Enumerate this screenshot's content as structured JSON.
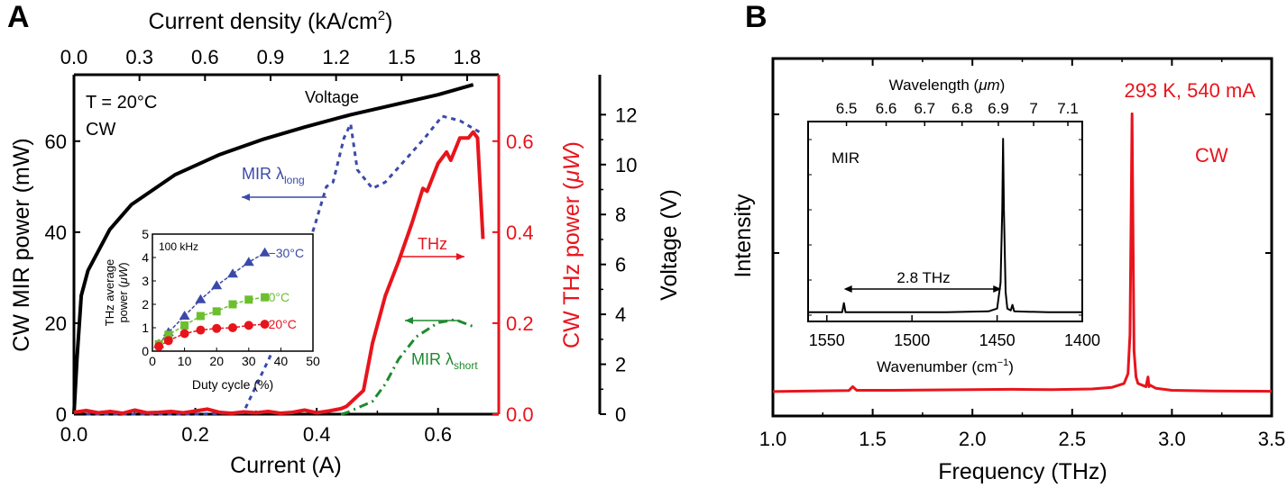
{
  "colors": {
    "black": "#000000",
    "red": "#e8141c",
    "blue": "#3b4aa8",
    "green": "#1e8a2e",
    "lightgreen": "#6cbf2e"
  },
  "chart_data": [
    {
      "panel_label": "A",
      "type": "line",
      "xlabel": "Current (A)",
      "x_top_label": {
        "text": "Current density (kA/cm",
        "sup": "2",
        "close": ")"
      },
      "ylabel_left": "CW MIR power (mW)",
      "ylabel_right": {
        "text": "CW THz power (",
        "mu": "μW",
        ")": ")"
      },
      "ylabel_right_parts": [
        "CW THz power (",
        "μW",
        ")"
      ],
      "ylabel_far_right": "Voltage (V)",
      "xlim": [
        0,
        0.7
      ],
      "ylim_left": [
        0,
        74.6
      ],
      "ylim_right": [
        0,
        0.746
      ],
      "ylim_voltage": [
        0,
        13.6
      ],
      "x_ticks": [
        "0.0",
        "0.2",
        "0.4",
        "0.6"
      ],
      "x_top_ticks": [
        "0.0",
        "0.3",
        "0.6",
        "0.9",
        "1.2",
        "1.5",
        "1.8"
      ],
      "y_left_ticks": [
        "0",
        "20",
        "40",
        "60"
      ],
      "y_right_ticks": [
        "0.0",
        "0.2",
        "0.4",
        "0.6"
      ],
      "y_voltage_ticks": [
        "0",
        "2",
        "4",
        "6",
        "8",
        "10",
        "12"
      ],
      "annotations": {
        "temp": "T = 20°C",
        "mode": "CW",
        "voltage": "Voltage",
        "thz": "THz",
        "mir_long": "MIR λ",
        "mir_long_sub": "long",
        "mir_short": "MIR λ",
        "mir_short_sub": "short"
      },
      "series": [
        {
          "name": "Voltage",
          "axis": "voltage",
          "color": "#000000",
          "style": "solid",
          "x": [
            0,
            0.005,
            0.012,
            0.023,
            0.059,
            0.095,
            0.167,
            0.24,
            0.31,
            0.38,
            0.456,
            0.528,
            0.6,
            0.658
          ],
          "y": [
            0,
            2.25,
            4.75,
            5.75,
            7.4,
            8.4,
            9.6,
            10.4,
            11.0,
            11.5,
            12.0,
            12.4,
            12.8,
            13.2
          ]
        },
        {
          "name": "MIR λlong",
          "axis": "left",
          "color": "#3b4aa8",
          "style": "dotted",
          "x": [
            0.02,
            0.1,
            0.2,
            0.279,
            0.326,
            0.369,
            0.398,
            0.416,
            0.427,
            0.445,
            0.456,
            0.467,
            0.492,
            0.513,
            0.55,
            0.578,
            0.607,
            0.636,
            0.672
          ],
          "y": [
            0,
            0,
            0,
            0.3,
            13.5,
            29.5,
            42,
            50,
            51,
            60.7,
            63.8,
            53.7,
            49.6,
            51,
            56.5,
            60.7,
            65.5,
            64.5,
            61.7
          ]
        },
        {
          "name": "THz",
          "axis": "right",
          "color": "#e8141c",
          "style": "solid",
          "x": [
            0,
            0.02,
            0.04,
            0.06,
            0.08,
            0.1,
            0.12,
            0.14,
            0.16,
            0.18,
            0.2,
            0.22,
            0.24,
            0.26,
            0.28,
            0.3,
            0.32,
            0.34,
            0.36,
            0.38,
            0.4,
            0.42,
            0.44,
            0.449,
            0.477,
            0.492,
            0.513,
            0.535,
            0.557,
            0.575,
            0.582,
            0.6,
            0.614,
            0.621,
            0.636,
            0.65,
            0.658,
            0.665,
            0.674
          ],
          "y": [
            0.004,
            0.008,
            0.003,
            0.006,
            0.002,
            0.009,
            0.003,
            0.004,
            0.006,
            0.003,
            0.007,
            0.011,
            0.004,
            0.002,
            0.005,
            0.003,
            0.006,
            0.002,
            0.004,
            0.009,
            0.003,
            0.007,
            0.012,
            0.017,
            0.052,
            0.156,
            0.26,
            0.336,
            0.42,
            0.496,
            0.49,
            0.551,
            0.576,
            0.558,
            0.607,
            0.607,
            0.62,
            0.607,
            0.385
          ]
        },
        {
          "name": "MIR λshort",
          "axis": "left",
          "color": "#1e8a2e",
          "style": "dashdot",
          "x": [
            0.44,
            0.449,
            0.492,
            0.513,
            0.535,
            0.564,
            0.6,
            0.628,
            0.661
          ],
          "y": [
            0,
            0.3,
            2.8,
            6.6,
            12.1,
            17,
            20.1,
            20.8,
            19.1
          ]
        }
      ],
      "inset": {
        "type": "line",
        "xlabel": "Duty cycle (%)",
        "ylabel_line1": "THz average",
        "ylabel_line2_parts": [
          "power (",
          "μW",
          ")"
        ],
        "note": "100 kHz",
        "xlim": [
          0,
          50
        ],
        "ylim": [
          0,
          5
        ],
        "x_ticks": [
          "0",
          "10",
          "20",
          "30",
          "40",
          "50"
        ],
        "y_ticks": [
          "0",
          "1",
          "2",
          "3",
          "4",
          "5"
        ],
        "series": [
          {
            "name": "−30°C",
            "color": "#3b4aa8",
            "marker": "triangle",
            "x": [
              2,
              5,
              10,
              15,
              20,
              25,
              30,
              35
            ],
            "y": [
              0.3,
              0.8,
              1.5,
              2.2,
              2.8,
              3.3,
              3.8,
              4.2
            ]
          },
          {
            "name": "0°C",
            "color": "#6cbf2e",
            "marker": "square",
            "x": [
              2,
              5,
              10,
              15,
              20,
              25,
              30,
              35
            ],
            "y": [
              0.3,
              0.7,
              1.1,
              1.5,
              1.7,
              2.0,
              2.2,
              2.3
            ]
          },
          {
            "name": "20°C",
            "color": "#e8141c",
            "marker": "circle",
            "x": [
              2,
              5,
              10,
              15,
              20,
              25,
              30,
              35
            ],
            "y": [
              0.2,
              0.45,
              0.75,
              0.9,
              0.97,
              1.0,
              1.1,
              1.15
            ]
          }
        ]
      }
    },
    {
      "panel_label": "B",
      "type": "line",
      "xlabel": "Frequency (THz)",
      "ylabel": "Intensity",
      "xlim": [
        1.0,
        3.5
      ],
      "ylim": [
        0,
        1.1
      ],
      "x_ticks": [
        "1.0",
        "1.5",
        "2.0",
        "2.5",
        "3.0",
        "3.5"
      ],
      "annotations": {
        "condition": "293 K, 540 mA",
        "mode": "CW"
      },
      "series": [
        {
          "color": "#e8141c",
          "x": [
            1.0,
            1.2,
            1.38,
            1.4,
            1.42,
            1.6,
            1.8,
            2.0,
            2.2,
            2.4,
            2.6,
            2.7,
            2.76,
            2.78,
            2.79,
            2.795,
            2.8,
            2.805,
            2.81,
            2.82,
            2.83,
            2.85,
            2.87,
            2.88,
            2.885,
            2.89,
            2.92,
            3.0,
            3.2,
            3.5
          ],
          "y": [
            0.075,
            0.077,
            0.078,
            0.09,
            0.079,
            0.079,
            0.08,
            0.081,
            0.082,
            0.081,
            0.083,
            0.088,
            0.1,
            0.13,
            0.25,
            0.6,
            0.93,
            0.55,
            0.2,
            0.12,
            0.1,
            0.095,
            0.09,
            0.12,
            0.09,
            0.095,
            0.085,
            0.079,
            0.077,
            0.076
          ]
        }
      ],
      "inset": {
        "type": "line",
        "label": "MIR",
        "xlabel_parts": [
          "Wavenumber (cm",
          "−1",
          ")"
        ],
        "x_top_label_parts": [
          "Wavelength (",
          "μm",
          ")"
        ],
        "xlim": [
          1561,
          1400
        ],
        "x_ticks": [
          "1550",
          "1500",
          "1450",
          "1400"
        ],
        "x_top_ticks": [
          "6.5",
          "6.6",
          "6.7",
          "6.8",
          "6.9",
          "7",
          "7.1"
        ],
        "arrow_label": "2.8 THz",
        "series": [
          {
            "color": "#000000",
            "x": [
              1561,
              1545,
              1541,
              1540,
              1539,
              1520,
              1480,
              1455,
              1450,
              1448,
              1447,
              1446.5,
              1446,
              1445,
              1444,
              1442,
              1441,
              1440,
              1420,
              1400
            ],
            "y": [
              0.04,
              0.04,
              0.04,
              0.09,
              0.04,
              0.04,
              0.04,
              0.045,
              0.06,
              0.2,
              0.6,
              0.98,
              0.6,
              0.15,
              0.06,
              0.05,
              0.08,
              0.045,
              0.04,
              0.04
            ]
          }
        ]
      }
    }
  ]
}
